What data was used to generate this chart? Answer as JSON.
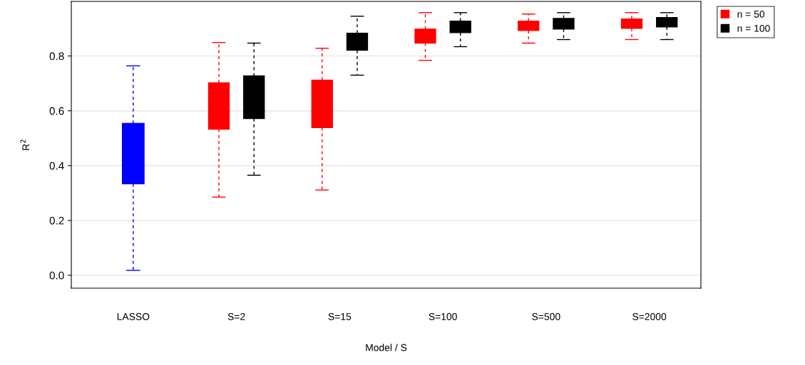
{
  "chart_data": {
    "type": "box",
    "xlabel": "Model / S",
    "ylabel": "R$^{2}$",
    "categories": [
      "LASSO",
      "S=2",
      "S=15",
      "S=100",
      "S=500",
      "S=2000"
    ],
    "ylim": [
      -0.047,
      0.999
    ],
    "yticks": [
      {
        "value": 0,
        "label": "0.0"
      },
      {
        "value": 0.2,
        "label": "0.2"
      },
      {
        "value": 0.4,
        "label": "0.4"
      },
      {
        "value": 0.6,
        "label": "0.6"
      },
      {
        "value": 0.8,
        "label": "0.8"
      }
    ],
    "grid": "y",
    "legend": "top right",
    "line_style": "dashed",
    "series": [
      {
        "color": "#0000ff",
        "boxes": [
          {
            "low": 0.018,
            "q1": 0.334,
            "median": 0.44,
            "q3": 0.554,
            "high": 0.764
          },
          null,
          null,
          null,
          null,
          null
        ]
      },
      {
        "name": "n = 50",
        "color": "#ff0000",
        "boxes": [
          null,
          {
            "low": 0.285,
            "q1": 0.533,
            "median": 0.62,
            "q3": 0.702,
            "high": 0.849
          },
          {
            "low": 0.311,
            "q1": 0.539,
            "median": 0.63,
            "q3": 0.712,
            "high": 0.828
          },
          {
            "low": 0.784,
            "q1": 0.847,
            "median": 0.87,
            "q3": 0.898,
            "high": 0.958
          },
          {
            "low": 0.847,
            "q1": 0.893,
            "median": 0.91,
            "q3": 0.927,
            "high": 0.953
          },
          {
            "low": 0.86,
            "q1": 0.901,
            "median": 0.92,
            "q3": 0.935,
            "high": 0.958
          }
        ]
      },
      {
        "name": "n = 100",
        "color": "#000000",
        "boxes": [
          null,
          {
            "low": 0.365,
            "q1": 0.572,
            "median": 0.65,
            "q3": 0.727,
            "high": 0.847
          },
          {
            "low": 0.73,
            "q1": 0.821,
            "median": 0.85,
            "q3": 0.883,
            "high": 0.945
          },
          {
            "low": 0.834,
            "q1": 0.885,
            "median": 0.91,
            "q3": 0.927,
            "high": 0.958
          },
          {
            "low": 0.86,
            "q1": 0.898,
            "median": 0.92,
            "q3": 0.937,
            "high": 0.958
          },
          {
            "low": 0.86,
            "q1": 0.906,
            "median": 0.92,
            "q3": 0.94,
            "high": 0.958
          }
        ]
      }
    ]
  }
}
